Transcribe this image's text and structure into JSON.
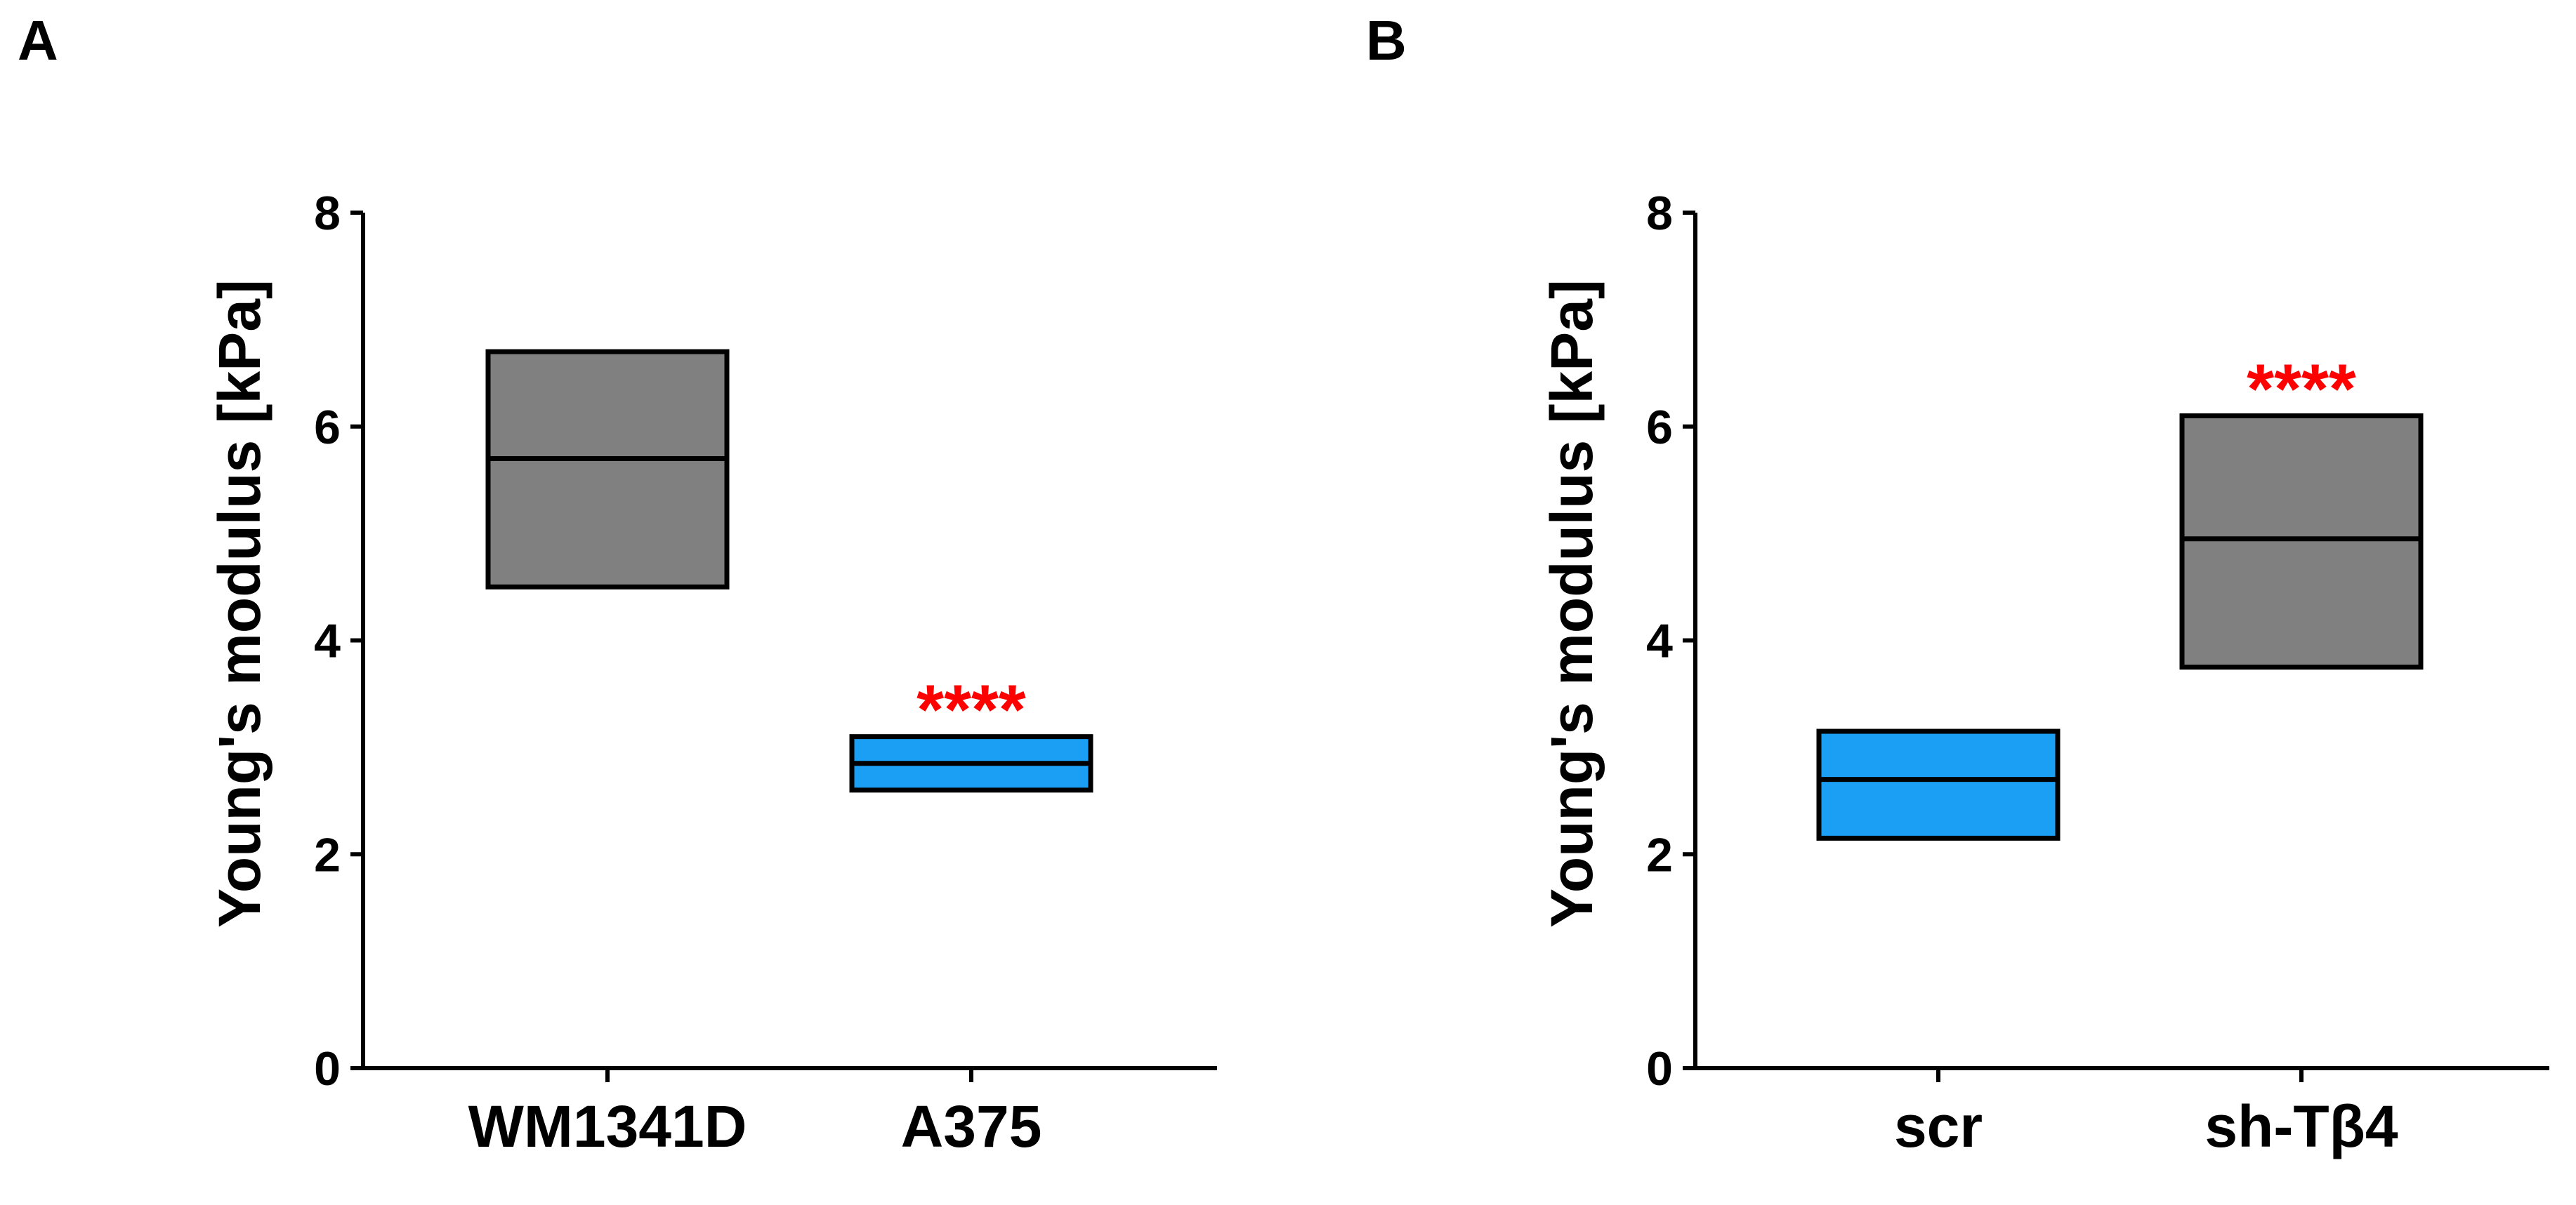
{
  "panels": [
    {
      "letter": "A",
      "chart_data": {
        "type": "box",
        "title": "",
        "xlabel": "",
        "ylabel": "Young's modulus [kPa]",
        "ylim": [
          0,
          8
        ],
        "yticks": [
          0,
          2,
          4,
          6,
          8
        ],
        "categories": [
          "WM1341D",
          "A375"
        ],
        "boxes": [
          {
            "category": "WM1341D",
            "low": 4.5,
            "median": 5.7,
            "high": 6.7,
            "color": "#808080",
            "significance": ""
          },
          {
            "category": "A375",
            "low": 2.6,
            "median": 2.85,
            "high": 3.1,
            "color": "#1a9ff5",
            "significance": "****"
          }
        ]
      }
    },
    {
      "letter": "B",
      "chart_data": {
        "type": "box",
        "title": "",
        "xlabel": "",
        "ylabel": "Young's modulus [kPa]",
        "ylim": [
          0,
          8
        ],
        "yticks": [
          0,
          2,
          4,
          6,
          8
        ],
        "categories": [
          "scr",
          "sh-Tβ4"
        ],
        "boxes": [
          {
            "category": "scr",
            "low": 2.15,
            "median": 2.7,
            "high": 3.15,
            "color": "#1a9ff5",
            "significance": ""
          },
          {
            "category": "sh-Tβ4",
            "low": 3.75,
            "median": 4.95,
            "high": 6.1,
            "color": "#808080",
            "significance": "****"
          }
        ]
      }
    }
  ],
  "significance_color": "#ff0000"
}
